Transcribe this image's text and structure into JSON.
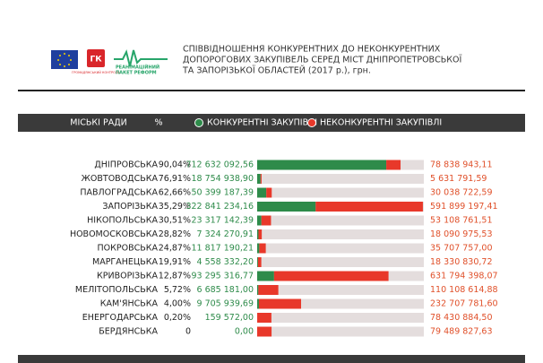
{
  "logos": {
    "gk": "ГК",
    "gk_caption": "ГРОМАДЯНСЬКИЙ КОНТРОЛЬ",
    "rpr": [
      "РЕАНІМАЦІЙНИЙ",
      "ПАКЕТ РЕФОРМ"
    ]
  },
  "chart_data": {
    "type": "bar",
    "orientation": "horizontal",
    "stacked": true,
    "title": [
      "СПІВВІДНОШЕННЯ КОНКУРЕНТНИХ ДО НЕКОНКУРЕНТНИХ",
      "ДОПОРОГОВИХ ЗАКУПІВЕЛЬ СЕРЕД МІСТ ДНІПРОПЕТРОВСЬКОЇ",
      "ТА ЗАПОРІЗЬКОЇ ОБЛАСТЕЙ (2017 р.), грн."
    ],
    "category_header": "МІСЬКІ РАДИ",
    "percent_header": "%",
    "categories": [
      "ДНІПРОВСЬКА",
      "ЖОВТОВОДСЬКА",
      "ПАВЛОГРАДСЬКА",
      "ЗАПОРІЗЬКА",
      "НІКОПОЛЬСЬКА",
      "НОВОМОСКОВСЬКА",
      "ПОКРОВСЬКА",
      "МАРГАНЕЦЬКА",
      "КРИВОРІЗЬКА",
      "МЕЛІТОПОЛЬСЬКА",
      "КАМ'ЯНСЬКА",
      "ЕНЕРГОДАРСЬКА",
      "БЕРДЯНСЬКА"
    ],
    "percent": {
      "values": [
        90.04,
        76.91,
        62.66,
        35.29,
        30.51,
        28.82,
        24.87,
        19.91,
        12.87,
        5.72,
        4.0,
        0.2,
        0
      ],
      "value_labels": [
        "90,04%",
        "76,91%",
        "62,66%",
        "35,29%",
        "30,51%",
        "28,82%",
        "24,87%",
        "19,91%",
        "12,87%",
        "5,72%",
        "4,00%",
        "0,20%",
        "0"
      ]
    },
    "series": [
      {
        "name": "КОНКУРЕНТНІ ЗАКУПІВЛІ",
        "color": "#2e8b4a",
        "values": [
          712632092.56,
          18754938.9,
          50399187.39,
          322841234.16,
          23317142.39,
          7324270.91,
          11817190.21,
          4558332.2,
          93295316.77,
          6685181.0,
          9705939.69,
          159572.0,
          0
        ],
        "value_labels": [
          "712 632 092,56",
          "18 754 938,90",
          "50 399 187,39",
          "322 841 234,16",
          "23 317 142,39",
          "7 324 270,91",
          "11 817 190,21",
          "4 558 332,20",
          "93 295 316,77",
          "6 685 181,00",
          "9 705 939,69",
          "159 572,00",
          "0,00"
        ]
      },
      {
        "name": "НЕКОНКУРЕНТНІ ЗАКУПІВЛІ",
        "color": "#e8382a",
        "values": [
          78838943.11,
          5631791.59,
          30038722.59,
          591899197.41,
          53108761.51,
          18090975.53,
          35707757.0,
          18330830.72,
          631794398.07,
          110108614.88,
          232707781.6,
          78430884.5,
          79489827.63
        ],
        "value_labels": [
          "78 838 943,11",
          "5 631 791,59",
          "30 038 722,59",
          "591 899 197,41",
          "53 108 761,51",
          "18 090 975,53",
          "35 707 757,00",
          "18 330 830,72",
          "631 794 398,07",
          "110 108 614,88",
          "232 707 781,60",
          "78 430 884,50",
          "79 489 827,63"
        ]
      }
    ],
    "xlim": [
      0,
      920000000
    ]
  }
}
